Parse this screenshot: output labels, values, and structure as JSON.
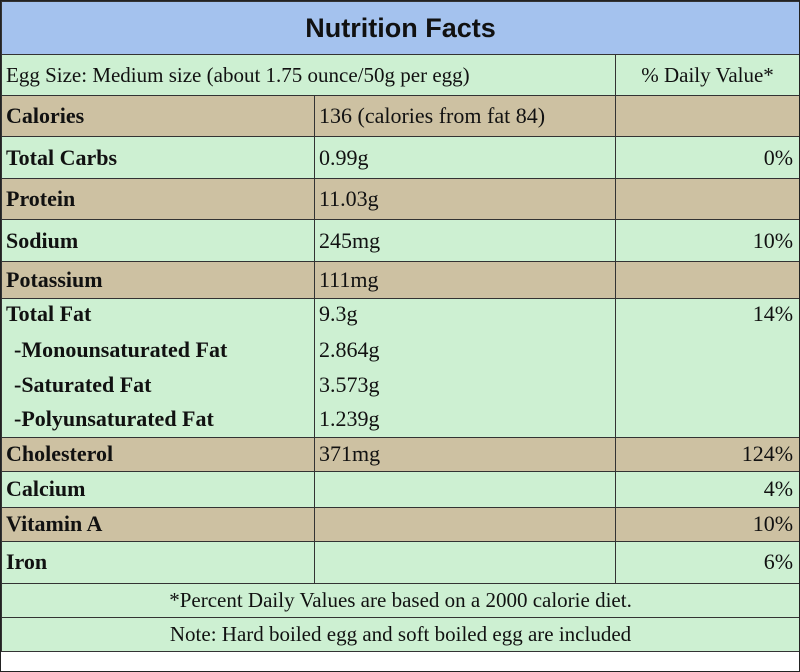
{
  "title": "Nutrition Facts",
  "header": {
    "egg_size": "Egg Size: Medium size (about 1.75 ounce/50g per egg)",
    "daily_value": "% Daily Value*"
  },
  "rows": [
    {
      "label": "Calories",
      "value": "136 (calories from fat 84)",
      "dv": ""
    },
    {
      "label": "Total Carbs",
      "value": "0.99g",
      "dv": "0%"
    },
    {
      "label": "Protein",
      "value": "11.03g",
      "dv": ""
    },
    {
      "label": "Sodium",
      "value": "245mg",
      "dv": "10%"
    },
    {
      "label": "Potassium",
      "value": "111mg",
      "dv": ""
    }
  ],
  "fat": {
    "label": "Total Fat",
    "value": "9.3g",
    "dv": "14%",
    "subs": [
      {
        "label": "-Monounsaturated Fat",
        "value": "2.864g"
      },
      {
        "label": "-Saturated Fat",
        "value": "3.573g"
      },
      {
        "label": "-Polyunsaturated Fat",
        "value": "1.239g"
      }
    ]
  },
  "rows2": [
    {
      "label": "Cholesterol",
      "value": "371mg",
      "dv": "124%"
    },
    {
      "label": "Calcium",
      "value": "",
      "dv": "4%"
    },
    {
      "label": "Vitamin A",
      "value": "",
      "dv": "10%"
    },
    {
      "label": "Iron",
      "value": "",
      "dv": "6%"
    }
  ],
  "footer": {
    "note1": "*Percent Daily Values are based on a 2000 calorie diet.",
    "note2": "Note: Hard boiled egg and soft boiled egg are included"
  },
  "colors": {
    "title_bg": "#a4c2ee",
    "green_row": "#cdf0d2",
    "tan_row": "#cdc1a2"
  }
}
